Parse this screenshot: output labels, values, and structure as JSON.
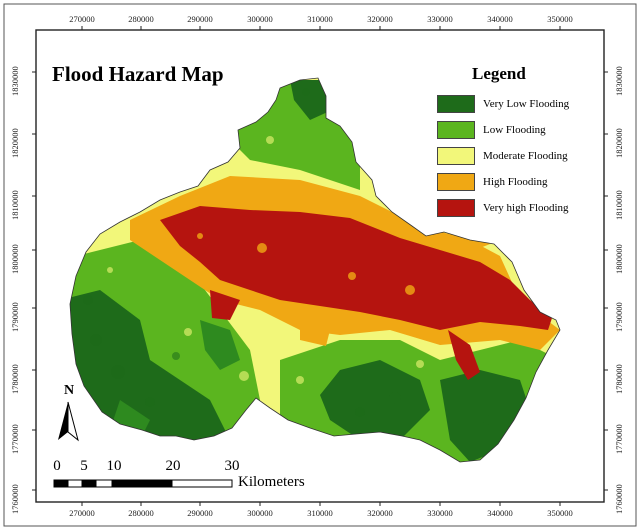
{
  "map": {
    "title": "Flood Hazard Map",
    "x_ticks": [
      "270000",
      "280000",
      "290000",
      "300000",
      "310000",
      "320000",
      "330000",
      "340000",
      "350000"
    ],
    "y_ticks": [
      "1830000",
      "1820000",
      "1810000",
      "1800000",
      "1790000",
      "1780000",
      "1770000",
      "1760000"
    ],
    "north_label": "N"
  },
  "legend": {
    "title": "Legend",
    "items": [
      {
        "label": "Very Low Flooding",
        "color": "#1e6b1a"
      },
      {
        "label": "Low Flooding",
        "color": "#5bb51f"
      },
      {
        "label": "Moderate Flooding",
        "color": "#f2f77a"
      },
      {
        "label": "High Flooding",
        "color": "#f0a814"
      },
      {
        "label": "Very high Flooding",
        "color": "#b5140f"
      }
    ]
  },
  "scale_bar": {
    "numbers": [
      "0",
      "5",
      "10",
      "20",
      "30"
    ],
    "unit": "Kilometers"
  }
}
